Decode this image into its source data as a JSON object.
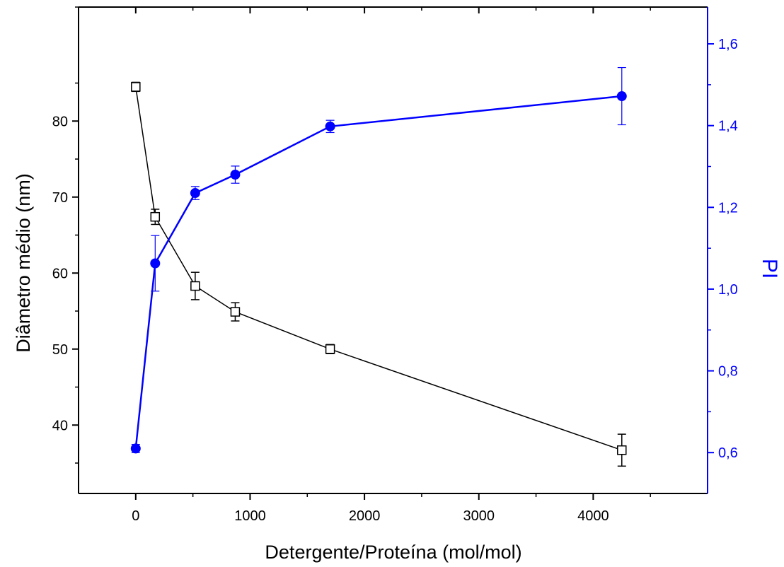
{
  "chart_data": {
    "type": "scatter",
    "xlabel": "Detergente/Proteína (mol/mol)",
    "ylabel_left": "Diâmetro médio (nm)",
    "ylabel_right": "PI",
    "xlim": [
      -500,
      5000
    ],
    "ylim_left": [
      31,
      95
    ],
    "ylim_right": [
      0.5,
      1.69
    ],
    "x_ticks": [
      "0",
      "1000",
      "2000",
      "3000",
      "4000"
    ],
    "y_left_ticks": [
      "40",
      "50",
      "60",
      "70",
      "80"
    ],
    "y_right_ticks": [
      "0,6",
      "0,8",
      "1,0",
      "1,2",
      "1,4",
      "1,6"
    ],
    "grid": false,
    "legend": "none",
    "series": [
      {
        "axis": "left",
        "color": "#000000",
        "marker": "open-square",
        "x": [
          0,
          170,
          520,
          870,
          1700,
          4250
        ],
        "y": [
          84.5,
          67.4,
          58.3,
          54.9,
          50.0,
          36.7
        ],
        "err": [
          0.6,
          1.0,
          1.8,
          1.2,
          0.6,
          2.1
        ]
      },
      {
        "axis": "right",
        "color": "#0000ff",
        "marker": "filled-circle",
        "x": [
          0,
          170,
          520,
          870,
          1700,
          4250
        ],
        "y": [
          0.61,
          1.063,
          1.235,
          1.28,
          1.398,
          1.472
        ],
        "err": [
          0.01,
          0.068,
          0.016,
          0.021,
          0.015,
          0.07
        ]
      }
    ]
  }
}
